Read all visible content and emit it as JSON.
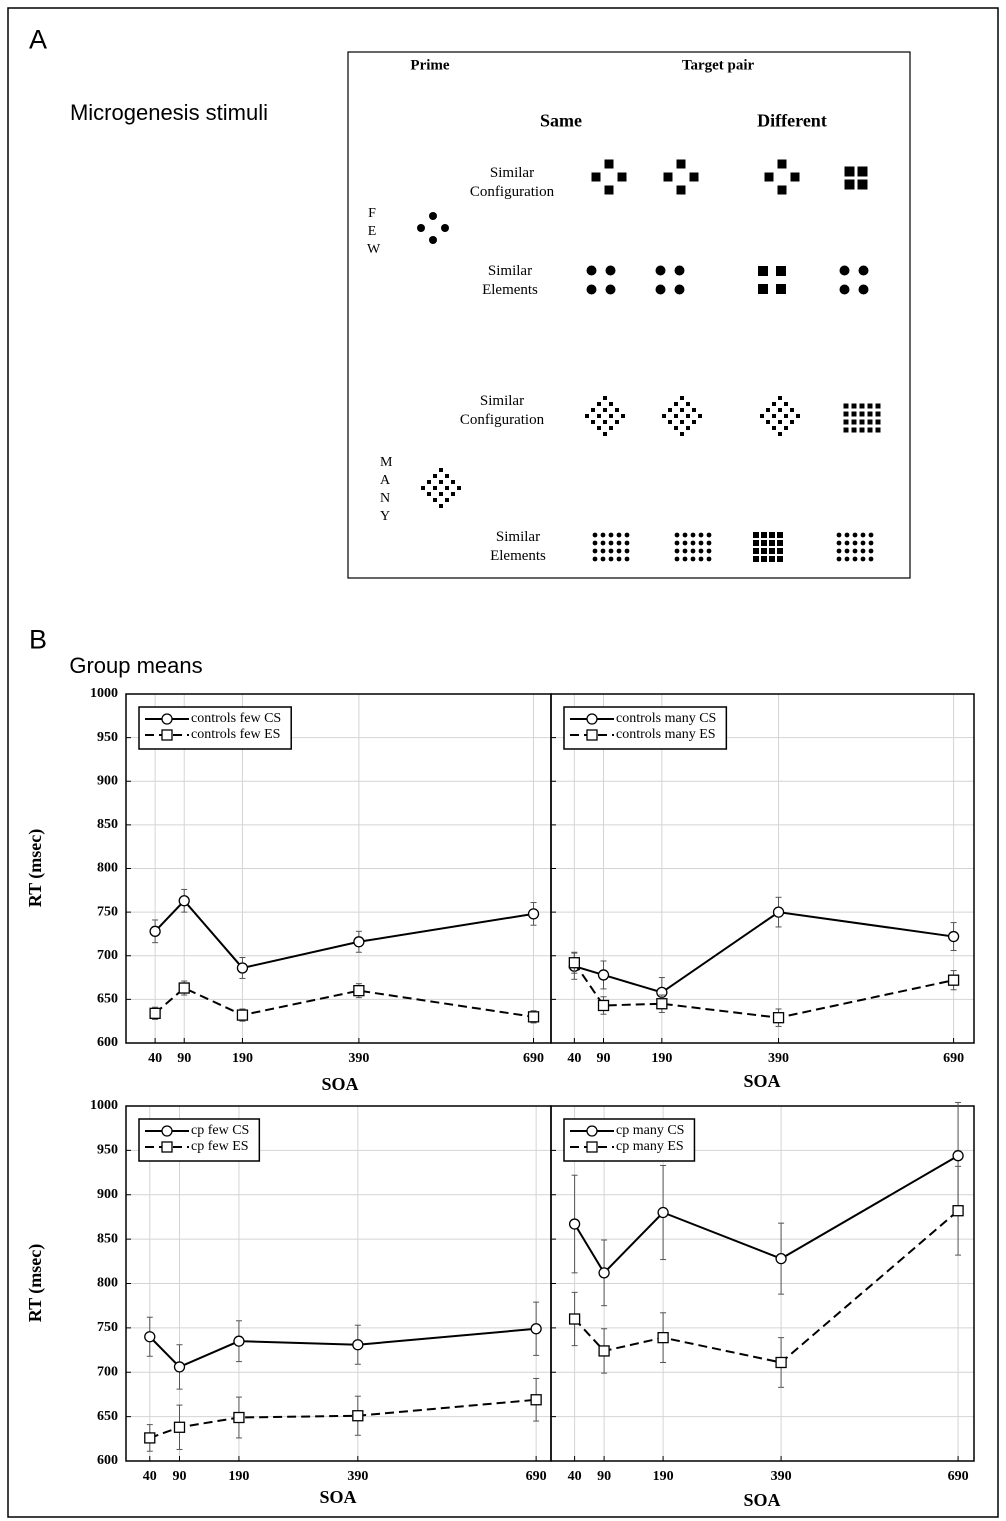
{
  "panel_a": {
    "label": "A",
    "title": "Microgenesis stimuli",
    "headers": {
      "prime": "Prime",
      "target": "Target pair",
      "same": "Same",
      "different": "Different"
    },
    "groups": [
      {
        "name": "FEW",
        "rows": [
          "Similar Configuration",
          "Similar Elements"
        ]
      },
      {
        "name": "MANY",
        "rows": [
          "Similar Configuration",
          "Similar Elements"
        ]
      }
    ]
  },
  "panel_b": {
    "label": "B",
    "title": "Group means"
  },
  "chart_data": [
    {
      "type": "line",
      "xlabel": "SOA",
      "ylabel": "RT (msec)",
      "x": [
        40,
        90,
        190,
        390,
        690
      ],
      "xlim": [
        -10,
        720
      ],
      "xticks": [
        40,
        90,
        190,
        390,
        690
      ],
      "ylim": [
        600,
        1000
      ],
      "yticks": [
        600,
        650,
        700,
        750,
        800,
        850,
        900,
        950,
        1000
      ],
      "ytick_labels": true,
      "grid": true,
      "legend": "upper left",
      "series": [
        {
          "name": "controls few CS",
          "color": "#000000",
          "marker": "circle",
          "line_style": "solid",
          "values": [
            728,
            763,
            686,
            716,
            748
          ],
          "errors": [
            13,
            13,
            12,
            12,
            13
          ]
        },
        {
          "name": "controls few ES",
          "color": "#000000",
          "marker": "square",
          "line_style": "dashed",
          "values": [
            634,
            663,
            632,
            660,
            630
          ],
          "errors": [
            7,
            8,
            7,
            8,
            7
          ]
        }
      ]
    },
    {
      "type": "line",
      "xlabel": "SOA",
      "x": [
        40,
        90,
        190,
        390,
        690
      ],
      "xlim": [
        0,
        725
      ],
      "xticks": [
        40,
        90,
        190,
        390,
        690
      ],
      "ylim": [
        600,
        1000
      ],
      "yticks": [
        600,
        650,
        700,
        750,
        800,
        850,
        900,
        950,
        1000
      ],
      "ytick_labels": false,
      "grid": true,
      "legend": "upper left",
      "series": [
        {
          "name": "controls many CS",
          "color": "#000000",
          "marker": "circle",
          "line_style": "solid",
          "values": [
            688,
            678,
            658,
            750,
            722
          ],
          "errors": [
            15,
            16,
            17,
            17,
            16
          ]
        },
        {
          "name": "controls many ES",
          "color": "#000000",
          "marker": "square",
          "line_style": "dashed",
          "values": [
            692,
            643,
            645,
            629,
            672
          ],
          "errors": [
            12,
            10,
            10,
            10,
            11
          ]
        }
      ]
    },
    {
      "type": "line",
      "xlabel": "SOA",
      "ylabel": "RT (msec)",
      "x": [
        40,
        90,
        190,
        390,
        690
      ],
      "xlim": [
        0,
        715
      ],
      "xticks": [
        40,
        90,
        190,
        390,
        690
      ],
      "ylim": [
        600,
        1000
      ],
      "yticks": [
        600,
        650,
        700,
        750,
        800,
        850,
        900,
        950,
        1000
      ],
      "ytick_labels": true,
      "grid": true,
      "legend": "upper left",
      "series": [
        {
          "name": "cp few CS",
          "color": "#000000",
          "marker": "circle",
          "line_style": "solid",
          "values": [
            740,
            706,
            735,
            731,
            749
          ],
          "errors": [
            22,
            25,
            23,
            22,
            30
          ]
        },
        {
          "name": "cp few ES",
          "color": "#000000",
          "marker": "square",
          "line_style": "dashed",
          "values": [
            626,
            638,
            649,
            651,
            669
          ],
          "errors": [
            15,
            25,
            23,
            22,
            24
          ]
        }
      ]
    },
    {
      "type": "line",
      "xlabel": "SOA",
      "x": [
        40,
        90,
        190,
        390,
        690
      ],
      "xlim": [
        0,
        717
      ],
      "xticks": [
        40,
        90,
        190,
        390,
        690
      ],
      "ylim": [
        600,
        1000
      ],
      "yticks": [
        600,
        650,
        700,
        750,
        800,
        850,
        900,
        950,
        1000
      ],
      "ytick_labels": false,
      "grid": true,
      "legend": "upper left",
      "series": [
        {
          "name": "cp many CS",
          "color": "#000000",
          "marker": "circle",
          "line_style": "solid",
          "values": [
            867,
            812,
            880,
            828,
            944
          ],
          "errors": [
            55,
            37,
            53,
            40,
            60
          ]
        },
        {
          "name": "cp many ES",
          "color": "#000000",
          "marker": "square",
          "line_style": "dashed",
          "values": [
            760,
            724,
            739,
            711,
            882
          ],
          "errors": [
            30,
            25,
            28,
            28,
            50
          ]
        }
      ]
    }
  ]
}
